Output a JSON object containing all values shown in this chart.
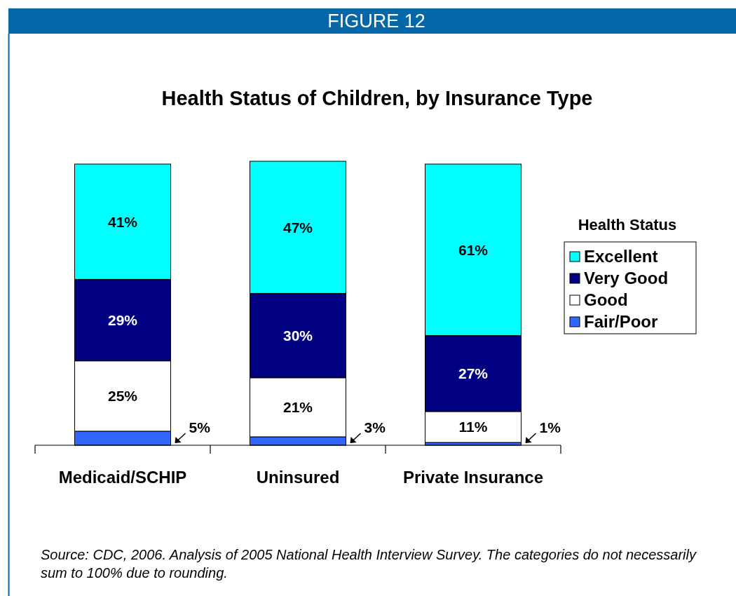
{
  "chart_data": {
    "type": "bar",
    "title": "Health Status of Children, by Insurance Type",
    "legend_title": "Health Status",
    "categories": [
      "Medicaid/SCHIP",
      "Uninsured",
      "Private Insurance"
    ],
    "stacked": true,
    "legend": "right",
    "series": [
      {
        "name": "Fair/Poor",
        "color": "#3366ff",
        "values": [
          5,
          3,
          1
        ],
        "value_labels": [
          "5%",
          "3%",
          "1%"
        ]
      },
      {
        "name": "Good",
        "color": "#ffffff",
        "values": [
          25,
          21,
          11
        ],
        "value_labels": [
          "25%",
          "21%",
          "11%"
        ]
      },
      {
        "name": "Very Good",
        "color": "#000080",
        "values": [
          29,
          30,
          27
        ],
        "value_labels": [
          "29%",
          "30%",
          "27%"
        ]
      },
      {
        "name": "Excellent",
        "color": "#00ffff",
        "values": [
          41,
          47,
          61
        ],
        "value_labels": [
          "41%",
          "47%",
          "61%"
        ]
      }
    ],
    "annotations": [
      "FIGURE 12",
      "Source: CDC, 2006.  Analysis of 2005 National Health Interview Survey. The categories do not necessarily sum to 100% due to rounding."
    ]
  }
}
